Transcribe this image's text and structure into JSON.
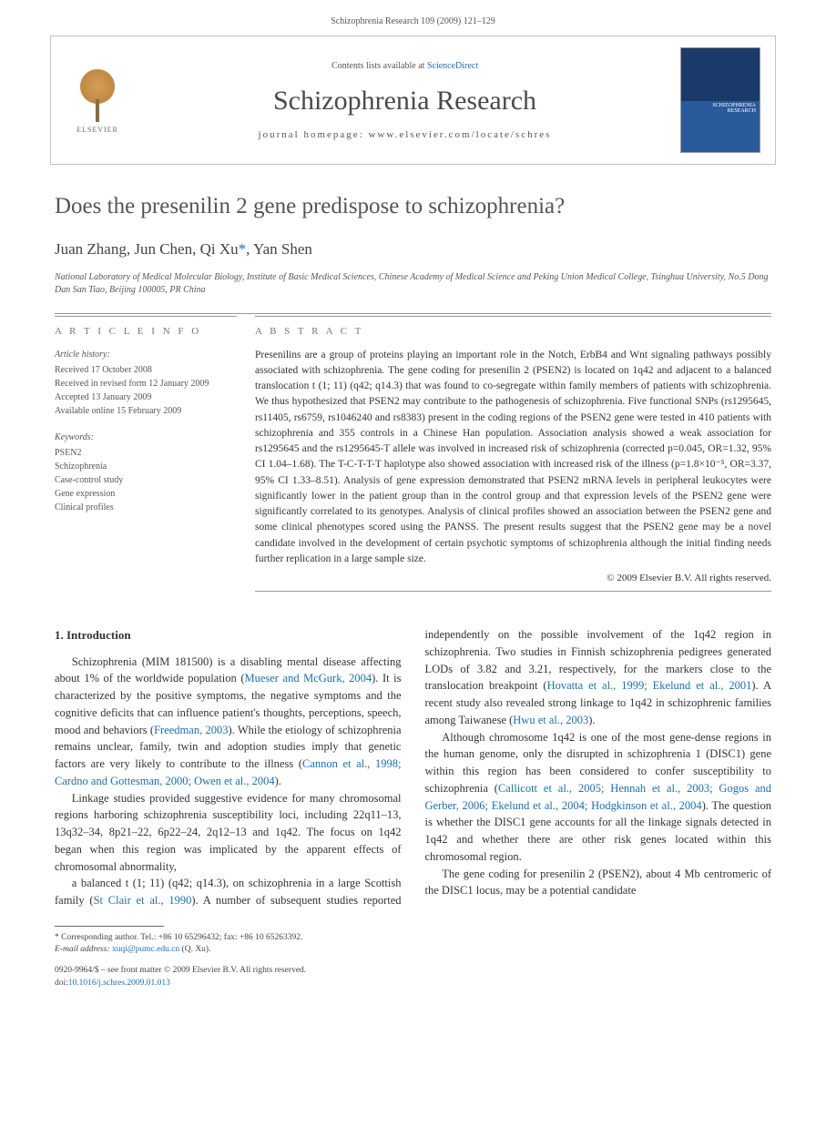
{
  "header": {
    "citation": "Schizophrenia Research 109 (2009) 121–129"
  },
  "masthead": {
    "elsevier_label": "ELSEVIER",
    "contents_prefix": "Contents lists available at ",
    "contents_link": "ScienceDirect",
    "journal_name": "Schizophrenia Research",
    "homepage_prefix": "journal homepage: ",
    "homepage_url": "www.elsevier.com/locate/schres",
    "cover_label": "SCHIZOPHRENIA RESEARCH"
  },
  "article": {
    "title": "Does the presenilin 2 gene predispose to schizophrenia?",
    "authors_html": "Juan Zhang, Jun Chen, Qi Xu",
    "author_last": ", Yan Shen",
    "corr_mark": "*",
    "affiliation": "National Laboratory of Medical Molecular Biology, Institute of Basic Medical Sciences, Chinese Academy of Medical Science and Peking Union Medical College, Tsinghua University, No.5 Dong Dan San Tiao, Beijing 100005, PR China"
  },
  "info": {
    "heading": "A R T I C L E   I N F O",
    "history_head": "Article history:",
    "received": "Received 17 October 2008",
    "revised": "Received in revised form 12 January 2009",
    "accepted": "Accepted 13 January 2009",
    "online": "Available online 15 February 2009",
    "keywords_head": "Keywords:",
    "kw1": "PSEN2",
    "kw2": "Schizophrenia",
    "kw3": "Case-control study",
    "kw4": "Gene expression",
    "kw5": "Clinical profiles"
  },
  "abstract": {
    "heading": "A B S T R A C T",
    "text": "Presenilins are a group of proteins playing an important role in the Notch, ErbB4 and Wnt signaling pathways possibly associated with schizophrenia. The gene coding for presenilin 2 (PSEN2) is located on 1q42 and adjacent to a balanced translocation t (1; 11) (q42; q14.3) that was found to co-segregate within family members of patients with schizophrenia. We thus hypothesized that PSEN2 may contribute to the pathogenesis of schizophrenia. Five functional SNPs (rs1295645, rs11405, rs6759, rs1046240 and rs8383) present in the coding regions of the PSEN2 gene were tested in 410 patients with schizophrenia and 355 controls in a Chinese Han population. Association analysis showed a weak association for rs1295645 and the rs1295645-T allele was involved in increased risk of schizophrenia (corrected p=0.045, OR=1.32, 95% CI 1.04–1.68). The T-C-T-T-T haplotype also showed association with increased risk of the illness (p=1.8×10⁻⁵, OR=3.37, 95% CI 1.33–8.51). Analysis of gene expression demonstrated that PSEN2 mRNA levels in peripheral leukocytes were significantly lower in the patient group than in the control group and that expression levels of the PSEN2 gene were significantly correlated to its genotypes. Analysis of clinical profiles showed an association between the PSEN2 gene and some clinical phenotypes scored using the PANSS. The present results suggest that the PSEN2 gene may be a novel candidate involved in the development of certain psychotic symptoms of schizophrenia although the initial finding needs further replication in a large sample size.",
    "copyright": "© 2009 Elsevier B.V. All rights reserved."
  },
  "body": {
    "section_heading": "1. Introduction",
    "p1a": "Schizophrenia (MIM 181500) is a disabling mental disease affecting about 1% of the worldwide population (",
    "p1_ref1": "Mueser and McGurk, 2004",
    "p1b": "). It is characterized by the positive symptoms, the negative symptoms and the cognitive deficits that can influence patient's thoughts, perceptions, speech, mood and behaviors (",
    "p1_ref2": "Freedman, 2003",
    "p1c": "). While the etiology of schizophrenia remains unclear, family, twin and adoption studies imply that genetic factors are very likely to contribute to the illness (",
    "p1_ref3": "Cannon et al., 1998; Cardno and Gottesman, 2000; Owen et al., 2004",
    "p1d": ").",
    "p2": "Linkage studies provided suggestive evidence for many chromosomal regions harboring schizophrenia susceptibility loci, including 22q11–13, 13q32–34, 8p21–22, 6p22–24, 2q12–13 and 1q42. The focus on 1q42 began when this region was implicated by the apparent effects of chromosomal abnormality,",
    "p3a": "a balanced t (1; 11) (q42; q14.3), on schizophrenia in a large Scottish family (",
    "p3_ref1": "St Clair et al., 1990",
    "p3b": "). A number of subsequent studies reported independently on the possible involvement of the 1q42 region in schizophrenia. Two studies in Finnish schizophrenia pedigrees generated LODs of 3.82 and 3.21, respectively, for the markers close to the translocation breakpoint (",
    "p3_ref2": "Hovatta et al., 1999; Ekelund et al., 2001",
    "p3c": "). A recent study also revealed strong linkage to 1q42 in schizophrenic families among Taiwanese (",
    "p3_ref3": "Hwu et al., 2003",
    "p3d": ").",
    "p4a": "Although chromosome 1q42 is one of the most gene-dense regions in the human genome, only the disrupted in schizophrenia 1 (DISC1) gene within this region has been considered to confer susceptibility to schizophrenia (",
    "p4_ref1": "Callicott et al., 2005; Hennah et al., 2003; Gogos and Gerber, 2006; Ekelund et al., 2004; Hodgkinson et al., 2004",
    "p4b": "). The question is whether the DISC1 gene accounts for all the linkage signals detected in 1q42 and whether there are other risk genes located within this chromosomal region.",
    "p5": "The gene coding for presenilin 2 (PSEN2), about 4 Mb centromeric of the DISC1 locus, may be a potential candidate"
  },
  "footnote": {
    "corr_label": "* Corresponding author. Tel.: +86 10 65296432; fax: +86 10 65263392.",
    "email_label": "E-mail address: ",
    "email": "xuqi@pumc.edu.cn",
    "email_suffix": " (Q. Xu)."
  },
  "footer": {
    "line1": "0920-9964/$ – see front matter © 2009 Elsevier B.V. All rights reserved.",
    "doi_prefix": "doi:",
    "doi": "10.1016/j.schres.2009.01.013"
  }
}
